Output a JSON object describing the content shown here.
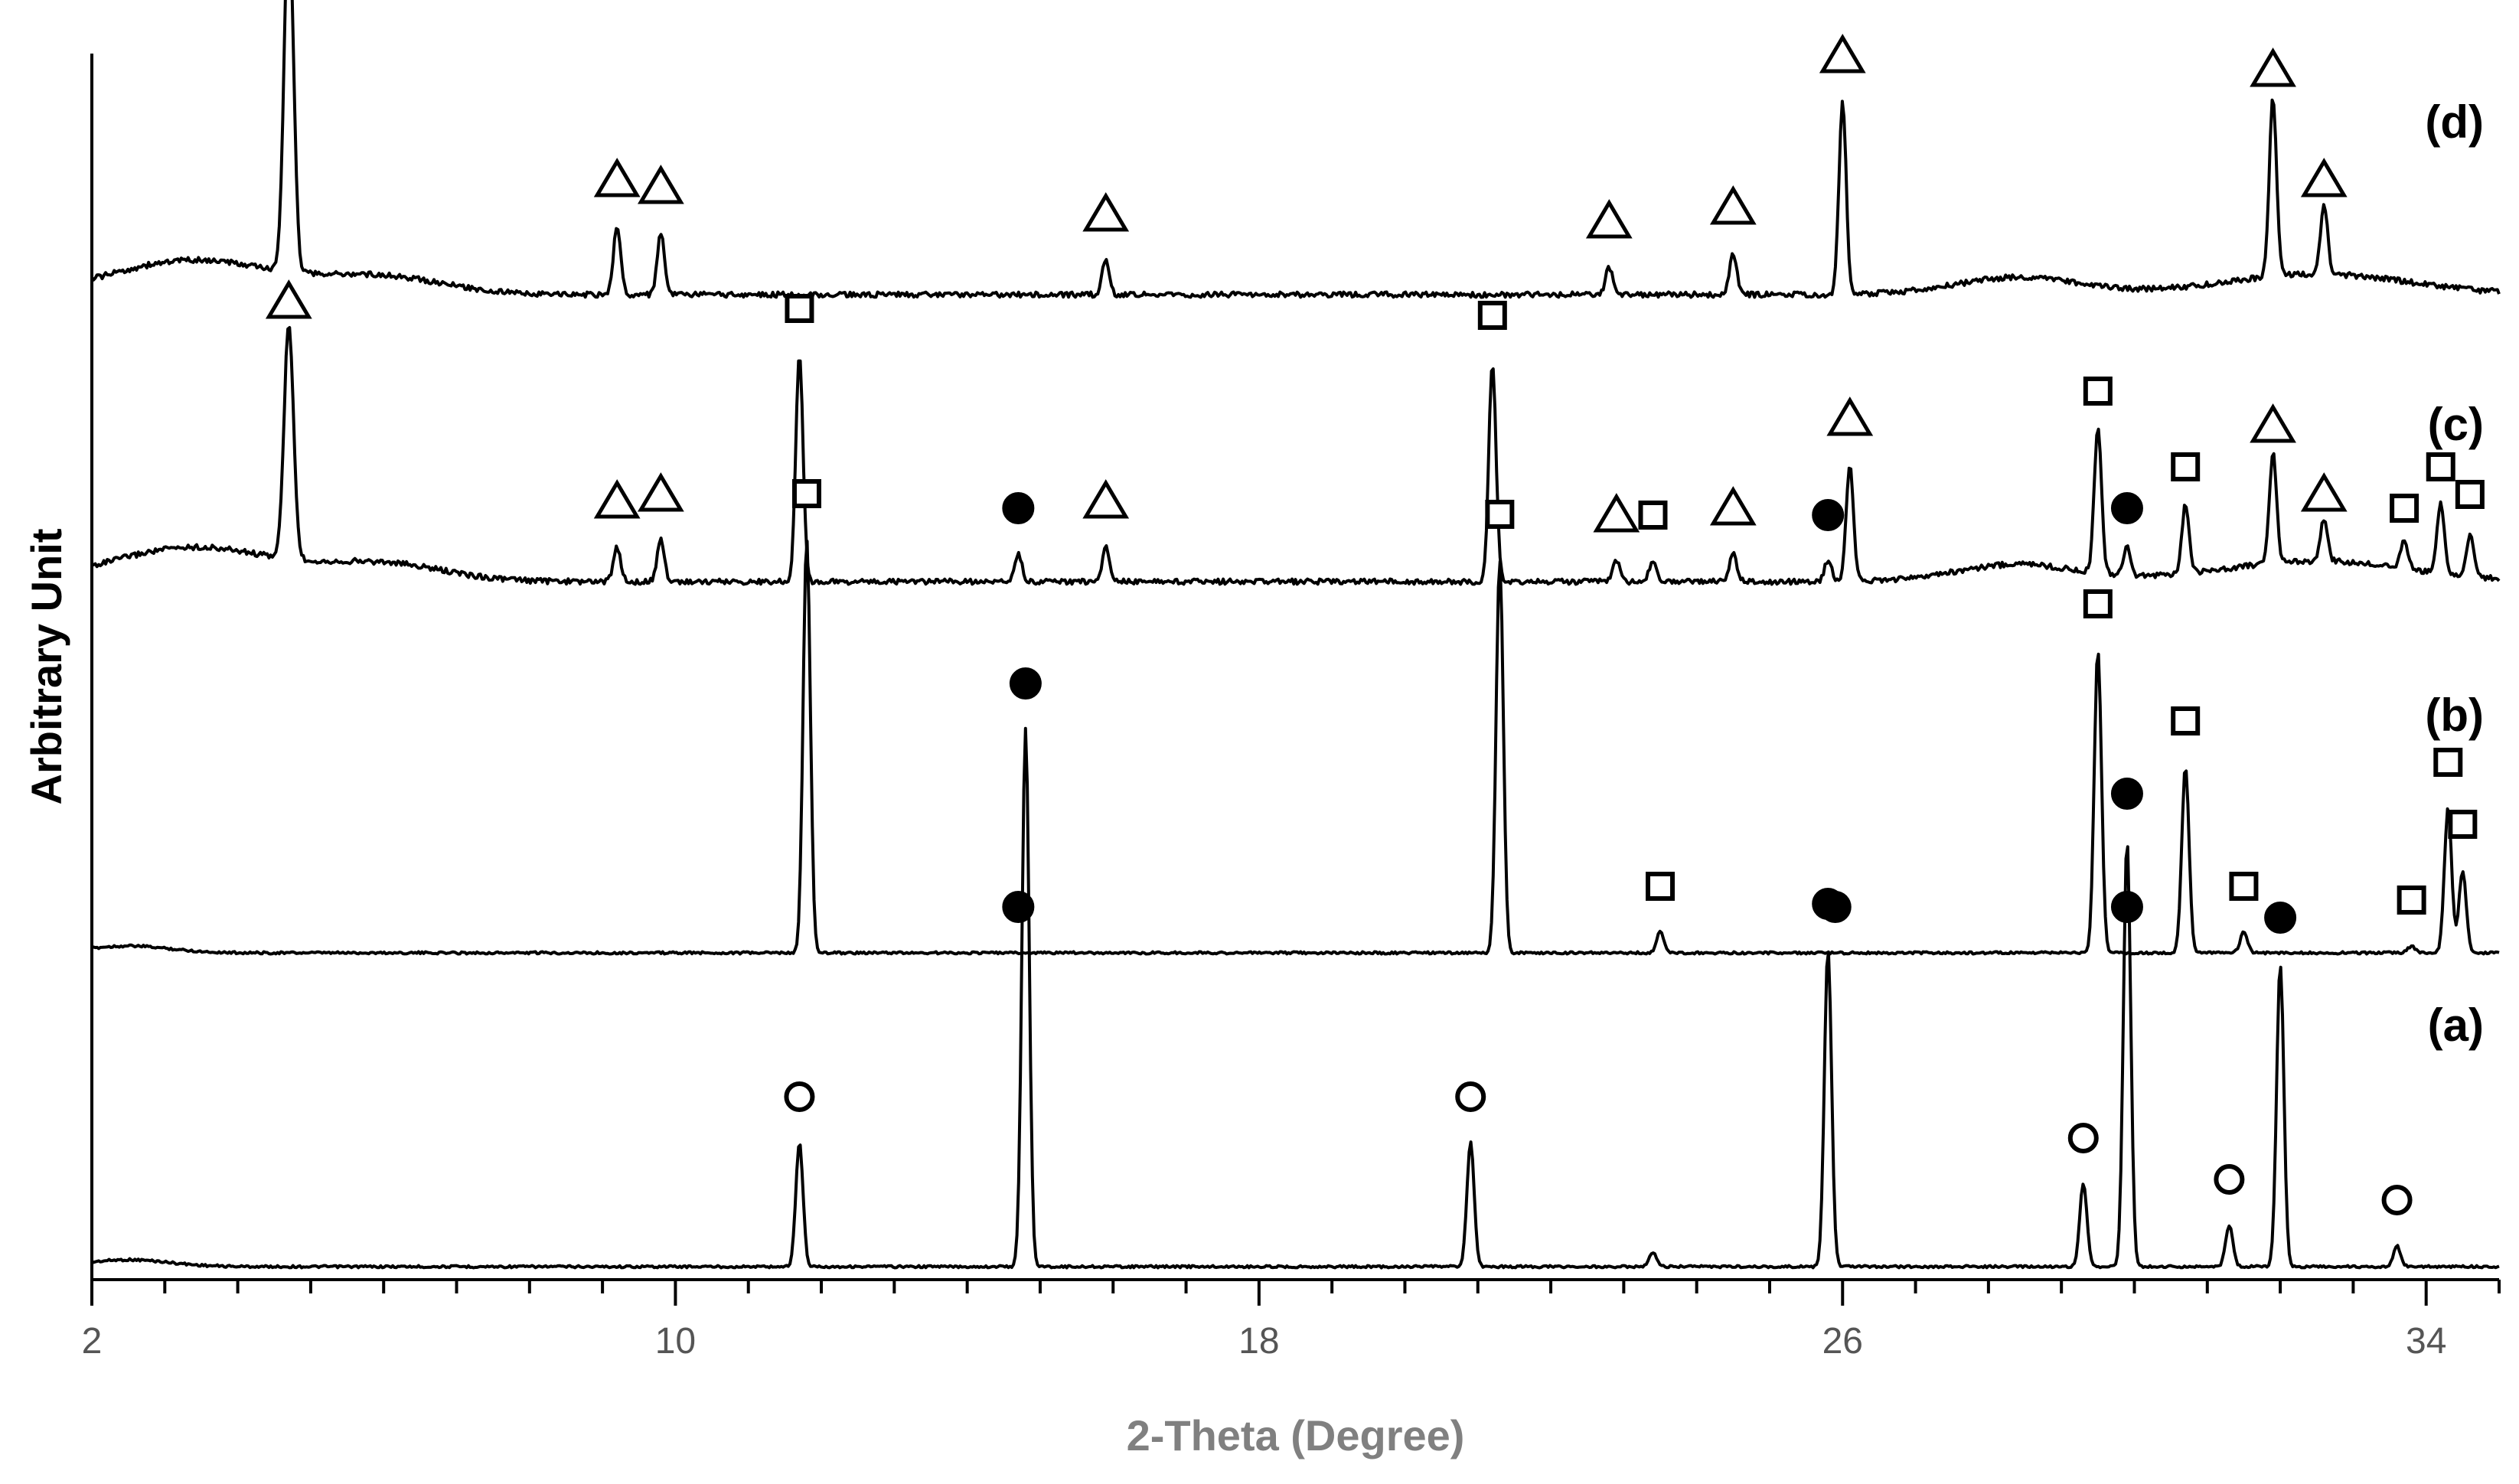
{
  "chart_data": {
    "type": "line",
    "xlabel": "2-Theta (Degree)",
    "ylabel": "Arbitrary Unit",
    "xlim": [
      2,
      35
    ],
    "x_tick_labels": [
      2,
      10,
      18,
      26,
      34
    ],
    "x_minor_step": 1,
    "y_axis_ticks": "none",
    "grid": false,
    "series": [
      {
        "name": "(a)",
        "baseline_order": 0,
        "peaks": [
          {
            "x": 11.7,
            "y": 18,
            "marker": "open-circle"
          },
          {
            "x": 14.8,
            "y": 78,
            "marker": "solid-circle"
          },
          {
            "x": 20.9,
            "y": 18,
            "marker": "open-circle"
          },
          {
            "x": 23.4,
            "y": 2,
            "marker": ""
          },
          {
            "x": 25.8,
            "y": 46,
            "marker": "solid-circle"
          },
          {
            "x": 29.3,
            "y": 12,
            "marker": "open-circle"
          },
          {
            "x": 29.9,
            "y": 62,
            "marker": "solid-circle"
          },
          {
            "x": 31.3,
            "y": 6,
            "marker": "open-circle"
          },
          {
            "x": 32.0,
            "y": 44,
            "marker": "solid-circle"
          },
          {
            "x": 33.6,
            "y": 3,
            "marker": "open-circle"
          }
        ]
      },
      {
        "name": "(b)",
        "baseline_order": 1,
        "peaks": [
          {
            "x": 11.8,
            "y": 60,
            "marker": "open-square"
          },
          {
            "x": 14.7,
            "y": 0,
            "marker": "solid-circle"
          },
          {
            "x": 21.3,
            "y": 57,
            "marker": "open-square"
          },
          {
            "x": 23.5,
            "y": 3,
            "marker": "open-square"
          },
          {
            "x": 25.9,
            "y": 0,
            "marker": "solid-circle"
          },
          {
            "x": 29.5,
            "y": 44,
            "marker": "open-square"
          },
          {
            "x": 29.9,
            "y": 0,
            "marker": "solid-circle"
          },
          {
            "x": 30.7,
            "y": 27,
            "marker": "open-square"
          },
          {
            "x": 31.5,
            "y": 3,
            "marker": "open-square"
          },
          {
            "x": 33.8,
            "y": 1,
            "marker": "open-square"
          },
          {
            "x": 34.3,
            "y": 21,
            "marker": "open-square"
          },
          {
            "x": 34.5,
            "y": 12,
            "marker": "open-square"
          }
        ]
      },
      {
        "name": "(c)",
        "baseline_order": 2,
        "peaks": [
          {
            "x": 4.7,
            "y": 34,
            "marker": "open-triangle"
          },
          {
            "x": 9.2,
            "y": 5,
            "marker": "open-triangle"
          },
          {
            "x": 9.8,
            "y": 6,
            "marker": "open-triangle"
          },
          {
            "x": 11.7,
            "y": 33,
            "marker": "open-square"
          },
          {
            "x": 14.7,
            "y": 4,
            "marker": "solid-circle"
          },
          {
            "x": 15.9,
            "y": 5,
            "marker": "open-triangle"
          },
          {
            "x": 21.2,
            "y": 32,
            "marker": "open-square"
          },
          {
            "x": 22.9,
            "y": 3,
            "marker": "open-triangle"
          },
          {
            "x": 23.4,
            "y": 3,
            "marker": "open-square"
          },
          {
            "x": 24.5,
            "y": 4,
            "marker": "open-triangle"
          },
          {
            "x": 25.8,
            "y": 3,
            "marker": "solid-circle"
          },
          {
            "x": 26.1,
            "y": 17,
            "marker": "open-triangle"
          },
          {
            "x": 29.5,
            "y": 21,
            "marker": "open-square"
          },
          {
            "x": 29.9,
            "y": 4,
            "marker": "solid-circle"
          },
          {
            "x": 30.7,
            "y": 10,
            "marker": "open-square"
          },
          {
            "x": 31.9,
            "y": 16,
            "marker": "open-triangle"
          },
          {
            "x": 32.6,
            "y": 6,
            "marker": "open-triangle"
          },
          {
            "x": 33.7,
            "y": 4,
            "marker": "open-square"
          },
          {
            "x": 34.2,
            "y": 10,
            "marker": "open-square"
          },
          {
            "x": 34.6,
            "y": 6,
            "marker": "open-square"
          }
        ]
      },
      {
        "name": "(d)",
        "baseline_order": 3,
        "peaks": [
          {
            "x": 4.7,
            "y": 52,
            "marker": "open-triangle"
          },
          {
            "x": 9.2,
            "y": 10,
            "marker": "open-triangle"
          },
          {
            "x": 9.8,
            "y": 9,
            "marker": "open-triangle"
          },
          {
            "x": 15.9,
            "y": 5,
            "marker": "open-triangle"
          },
          {
            "x": 22.8,
            "y": 4,
            "marker": "open-triangle"
          },
          {
            "x": 24.5,
            "y": 6,
            "marker": "open-triangle"
          },
          {
            "x": 26.0,
            "y": 28,
            "marker": "open-triangle"
          },
          {
            "x": 31.9,
            "y": 26,
            "marker": "open-triangle"
          },
          {
            "x": 32.6,
            "y": 10,
            "marker": "open-triangle"
          }
        ]
      }
    ]
  }
}
